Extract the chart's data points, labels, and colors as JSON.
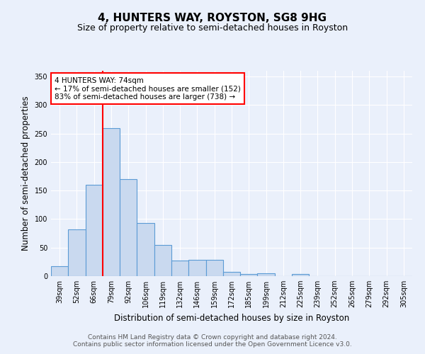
{
  "title": "4, HUNTERS WAY, ROYSTON, SG8 9HG",
  "subtitle": "Size of property relative to semi-detached houses in Royston",
  "xlabel": "Distribution of semi-detached houses by size in Royston",
  "ylabel": "Number of semi-detached properties",
  "footer_line1": "Contains HM Land Registry data © Crown copyright and database right 2024.",
  "footer_line2": "Contains public sector information licensed under the Open Government Licence v3.0.",
  "categories": [
    "39sqm",
    "52sqm",
    "66sqm",
    "79sqm",
    "92sqm",
    "106sqm",
    "119sqm",
    "132sqm",
    "146sqm",
    "159sqm",
    "172sqm",
    "185sqm",
    "199sqm",
    "212sqm",
    "225sqm",
    "239sqm",
    "252sqm",
    "265sqm",
    "279sqm",
    "292sqm",
    "305sqm"
  ],
  "values": [
    18,
    82,
    160,
    260,
    170,
    93,
    55,
    27,
    28,
    29,
    8,
    4,
    5,
    0,
    4,
    0,
    0,
    0,
    0,
    0,
    0
  ],
  "bar_color": "#c9d9ef",
  "bar_edge_color": "#5b9bd5",
  "annotation_text": "4 HUNTERS WAY: 74sqm\n← 17% of semi-detached houses are smaller (152)\n83% of semi-detached houses are larger (738) →",
  "annotation_box_color": "white",
  "annotation_box_edge": "red",
  "red_line_x": 2.5,
  "ylim": [
    0,
    360
  ],
  "yticks": [
    0,
    50,
    100,
    150,
    200,
    250,
    300,
    350
  ],
  "background_color": "#eaf0fb",
  "plot_bg_color": "#eaf0fb",
  "grid_color": "white",
  "title_fontsize": 11,
  "subtitle_fontsize": 9,
  "label_fontsize": 8.5,
  "tick_fontsize": 7,
  "footer_fontsize": 6.5,
  "annotation_fontsize": 7.5
}
